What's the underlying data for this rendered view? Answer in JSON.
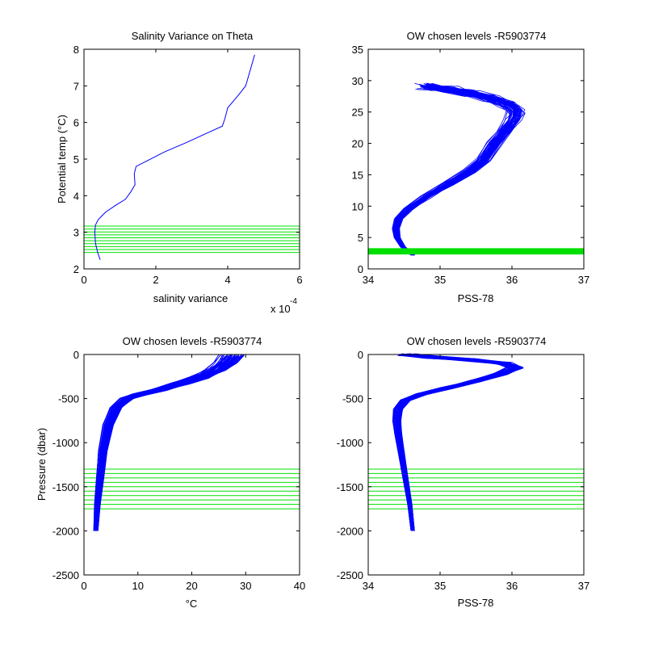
{
  "chart_data": [
    {
      "id": "p1",
      "type": "line",
      "title": "Salinity Variance on Theta",
      "xlabel": "salinity variance",
      "ylabel": "Potential temp (°C)",
      "x_multiplier": "x 10",
      "x_multiplier_exp": "-4",
      "xlim": [
        0,
        6
      ],
      "ylim": [
        2,
        8
      ],
      "xticks": [
        0,
        2,
        4,
        6
      ],
      "yticks": [
        2,
        3,
        4,
        5,
        6,
        7,
        8
      ],
      "line_color": "#0000ff",
      "highlight_color": "#00e000",
      "series": [
        {
          "x": [
            0.45,
            0.38,
            0.32,
            0.3,
            0.32,
            0.4,
            0.6,
            0.9,
            1.15,
            1.3,
            1.42,
            1.4,
            1.45,
            1.75,
            2.25,
            2.85,
            3.4,
            3.85,
            3.92,
            4.0,
            4.3,
            4.5,
            4.75
          ],
          "y": [
            2.25,
            2.45,
            2.7,
            3.0,
            3.2,
            3.35,
            3.55,
            3.75,
            3.9,
            4.1,
            4.3,
            4.6,
            4.8,
            4.95,
            5.2,
            5.45,
            5.7,
            5.9,
            6.1,
            6.4,
            6.75,
            7.0,
            7.85
          ]
        }
      ],
      "highlight_levels": [
        2.45,
        2.53,
        2.61,
        2.69,
        2.77,
        2.85,
        2.93,
        3.01,
        3.09,
        3.17
      ]
    },
    {
      "id": "p2",
      "type": "line",
      "title": "OW chosen levels -R5903774",
      "xlabel": "PSS-78",
      "ylabel": "",
      "xlim": [
        34,
        37
      ],
      "ylim": [
        0,
        35
      ],
      "xticks": [
        34,
        35,
        36,
        37
      ],
      "yticks": [
        0,
        5,
        10,
        15,
        20,
        25,
        30,
        35
      ],
      "line_color": "#0000ff",
      "highlight_color": "#00e000",
      "profile": {
        "s": [
          34.62,
          34.48,
          34.4,
          34.38,
          34.42,
          34.55,
          34.8,
          35.1,
          35.4,
          35.6,
          35.75,
          35.9,
          36.0,
          36.05,
          35.95,
          35.7,
          35.4,
          35.1,
          34.8
        ],
        "t": [
          2.2,
          3.5,
          5.0,
          6.5,
          8.0,
          9.5,
          11.5,
          13.5,
          15.5,
          17.5,
          20.0,
          22.0,
          23.5,
          25.0,
          26.2,
          27.2,
          28.0,
          28.6,
          29.0
        ]
      },
      "highlight_band": [
        2.3,
        3.3
      ]
    },
    {
      "id": "p3",
      "type": "line",
      "title": "OW chosen levels -R5903774",
      "xlabel": "°C",
      "ylabel": "Pressure (dbar)",
      "xlim": [
        0,
        40
      ],
      "ylim": [
        -2500,
        0
      ],
      "xticks": [
        0,
        10,
        20,
        30,
        40
      ],
      "yticks": [
        -2500,
        -2000,
        -1500,
        -1000,
        -500,
        0
      ],
      "line_color": "#0000ff",
      "highlight_color": "#00e000",
      "profile": {
        "x": [
          2.2,
          2.5,
          3.0,
          3.5,
          4.5,
          6.0,
          8.0,
          10.5,
          14.0,
          18.0,
          21.5,
          24.5,
          26.5,
          27.5
        ],
        "y": [
          -2000,
          -1700,
          -1400,
          -1100,
          -800,
          -600,
          -500,
          -450,
          -400,
          -330,
          -260,
          -180,
          -90,
          -10
        ]
      },
      "highlight_levels": [
        -1300,
        -1350,
        -1400,
        -1450,
        -1500,
        -1550,
        -1600,
        -1650,
        -1700,
        -1750
      ]
    },
    {
      "id": "p4",
      "type": "line",
      "title": "OW chosen levels -R5903774",
      "xlabel": "PSS-78",
      "ylabel": "",
      "xlim": [
        34,
        37
      ],
      "ylim": [
        -2500,
        0
      ],
      "xticks": [
        34,
        35,
        36,
        37
      ],
      "yticks": [
        -2500,
        -2000,
        -1500,
        -1000,
        -500,
        0
      ],
      "line_color": "#0000ff",
      "highlight_color": "#00e000",
      "profile": {
        "x": [
          34.62,
          34.58,
          34.52,
          34.46,
          34.42,
          34.4,
          34.42,
          34.52,
          34.75,
          35.1,
          35.5,
          35.85,
          36.05,
          35.9,
          35.4,
          34.9,
          34.55
        ],
        "y": [
          -2000,
          -1700,
          -1400,
          -1100,
          -900,
          -750,
          -620,
          -520,
          -450,
          -380,
          -300,
          -220,
          -150,
          -100,
          -60,
          -30,
          -5
        ]
      },
      "highlight_levels": [
        -1300,
        -1350,
        -1400,
        -1450,
        -1500,
        -1550,
        -1600,
        -1650,
        -1700,
        -1750
      ]
    }
  ]
}
